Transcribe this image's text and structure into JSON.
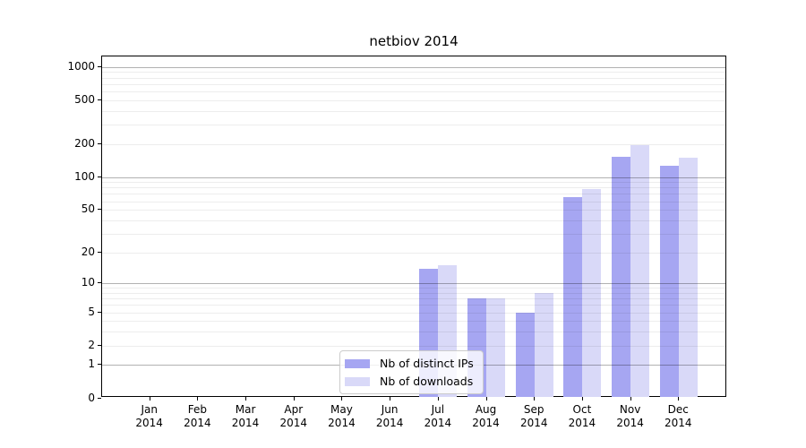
{
  "chart_data": {
    "type": "bar",
    "title": "netbiov 2014",
    "categories": [
      "Jan 2014",
      "Feb 2014",
      "Mar 2014",
      "Apr 2014",
      "May 2014",
      "Jun 2014",
      "Jul 2014",
      "Aug 2014",
      "Sep 2014",
      "Oct 2014",
      "Nov 2014",
      "Dec 2014"
    ],
    "series": [
      {
        "name": "Nb of distinct IPs",
        "color": "#a6a6f2",
        "values": [
          0,
          0,
          0,
          0,
          0,
          0,
          14,
          7,
          5,
          65,
          153,
          127
        ]
      },
      {
        "name": "Nb of downloads",
        "color": "#d9d9f8",
        "values": [
          0,
          0,
          0,
          0,
          0,
          0,
          15,
          7,
          8,
          78,
          194,
          151
        ]
      }
    ],
    "xlabel": "",
    "ylabel": "",
    "y_scale": "log1p",
    "y_ticks": [
      0,
      1,
      2,
      5,
      10,
      20,
      50,
      100,
      200,
      500,
      1000
    ],
    "ylim": [
      0,
      1234
    ],
    "grid": "horizontal major and log-minor gridlines",
    "legend_position": "lower center-left inside plot"
  }
}
